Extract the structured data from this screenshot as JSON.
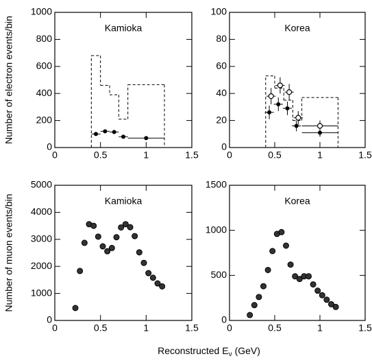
{
  "xlabel": {
    "main": "Reconstructed E",
    "sub": "ν",
    "unit": "(GeV)"
  },
  "chart_data": [
    {
      "type": "scatter",
      "label": "Kamioka",
      "ylabel": "Number of electron events/bin",
      "xlim": [
        0,
        1.5
      ],
      "xticks": [
        0,
        0.5,
        1,
        1.5
      ],
      "ylim": [
        0,
        1000
      ],
      "yticks": [
        0,
        200,
        400,
        600,
        800,
        1000
      ],
      "histogram": {
        "style": "dashed",
        "color": "#000000",
        "bins": [
          0.4,
          0.5,
          0.6,
          0.7,
          0.8,
          1.2
        ],
        "counts": [
          680,
          460,
          390,
          210,
          465
        ]
      },
      "series": [
        {
          "marker": "filled",
          "color": "#000000",
          "x": [
            0.45,
            0.55,
            0.65,
            0.75,
            1.0
          ],
          "values": [
            100,
            120,
            115,
            80,
            70
          ],
          "yerr": [
            12,
            12,
            12,
            10,
            8
          ],
          "xerr": [
            0.05,
            0.05,
            0.05,
            0.05,
            0.2
          ]
        }
      ]
    },
    {
      "type": "scatter",
      "label": "Korea",
      "xlim": [
        0,
        1.5
      ],
      "xticks": [
        0,
        0.5,
        1,
        1.5
      ],
      "ylim": [
        0,
        100
      ],
      "yticks": [
        0,
        20,
        40,
        60,
        80,
        100
      ],
      "histogram": {
        "style": "dashed",
        "color": "#000000",
        "bins": [
          0.4,
          0.5,
          0.6,
          0.7,
          0.8,
          1.2
        ],
        "counts": [
          53,
          44,
          35,
          20,
          37
        ]
      },
      "series": [
        {
          "marker": "open",
          "color": "#000000",
          "x": [
            0.46,
            0.56,
            0.66,
            0.76,
            1.0
          ],
          "values": [
            38,
            46,
            41,
            22,
            16
          ],
          "yerr": [
            6,
            6,
            6,
            5,
            4
          ],
          "xerr": [
            0.05,
            0.05,
            0.05,
            0.05,
            0.2
          ]
        },
        {
          "marker": "filled",
          "color": "#000000",
          "x": [
            0.44,
            0.54,
            0.64,
            0.74,
            1.0
          ],
          "values": [
            26,
            32,
            29,
            16,
            11
          ],
          "yerr": [
            5,
            5,
            5,
            4,
            3
          ],
          "xerr": [
            0.05,
            0.05,
            0.05,
            0.05,
            0.2
          ]
        }
      ]
    },
    {
      "type": "scatter",
      "label": "Kamioka",
      "ylabel": "Number of muon events/bin",
      "xlim": [
        0,
        1.5
      ],
      "xticks": [
        0,
        0.5,
        1,
        1.5
      ],
      "ylim": [
        0,
        5000
      ],
      "yticks": [
        0,
        1000,
        2000,
        3000,
        4000,
        5000
      ],
      "series": [
        {
          "marker": "shaded",
          "color": "#333333",
          "x": [
            0.225,
            0.275,
            0.325,
            0.375,
            0.425,
            0.475,
            0.525,
            0.575,
            0.625,
            0.675,
            0.725,
            0.775,
            0.825,
            0.875,
            0.925,
            0.975,
            1.025,
            1.075,
            1.125,
            1.175
          ],
          "values": [
            460,
            1830,
            2870,
            3560,
            3500,
            3100,
            2740,
            2560,
            2680,
            3080,
            3440,
            3560,
            3450,
            3120,
            2520,
            2130,
            1750,
            1580,
            1370,
            1260
          ]
        }
      ]
    },
    {
      "type": "scatter",
      "label": "Korea",
      "xlim": [
        0,
        1.5
      ],
      "xticks": [
        0,
        0.5,
        1,
        1.5
      ],
      "ylim": [
        0,
        1500
      ],
      "yticks": [
        0,
        500,
        1000,
        1500
      ],
      "series": [
        {
          "marker": "shaded",
          "color": "#333333",
          "x": [
            0.225,
            0.275,
            0.325,
            0.375,
            0.425,
            0.475,
            0.525,
            0.575,
            0.625,
            0.675,
            0.725,
            0.775,
            0.825,
            0.875,
            0.925,
            0.975,
            1.025,
            1.075,
            1.125,
            1.175
          ],
          "values": [
            60,
            170,
            260,
            380,
            560,
            770,
            960,
            980,
            830,
            620,
            490,
            460,
            490,
            490,
            400,
            330,
            280,
            230,
            180,
            150
          ]
        }
      ]
    }
  ]
}
